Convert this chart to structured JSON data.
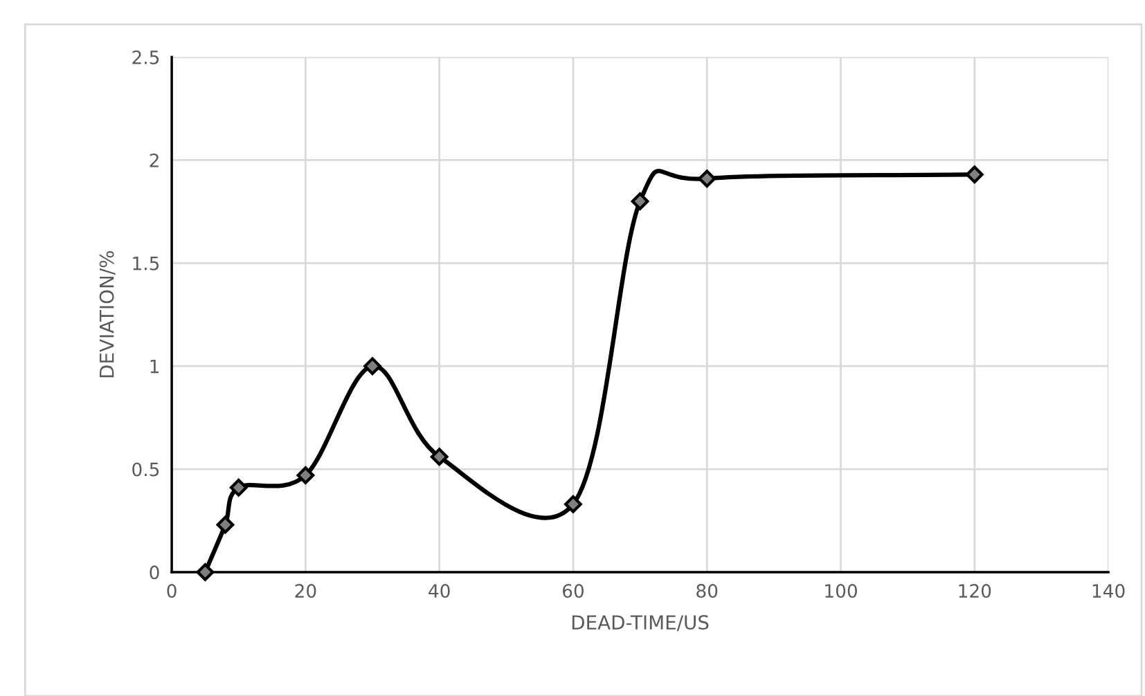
{
  "chart_data": {
    "type": "line",
    "xlabel": "DEAD-TIME/US",
    "ylabel": "DEVIATION/%",
    "x": [
      5,
      8,
      10,
      20,
      30,
      40,
      60,
      70,
      80,
      120
    ],
    "series": [
      {
        "color": "#000000",
        "values": [
          0,
          0.23,
          0.41,
          0.47,
          1.0,
          0.56,
          0.33,
          1.8,
          1.91,
          1.93
        ]
      }
    ],
    "xlim": [
      0,
      140
    ],
    "xticks": [
      0,
      20,
      40,
      60,
      80,
      100,
      120,
      140
    ],
    "ylim": [
      0,
      2.5
    ],
    "yticks": [
      0,
      0.5,
      1,
      1.5,
      2,
      2.5
    ],
    "grid": true,
    "marker": "diamond",
    "line_style": "solid",
    "legend": false
  }
}
